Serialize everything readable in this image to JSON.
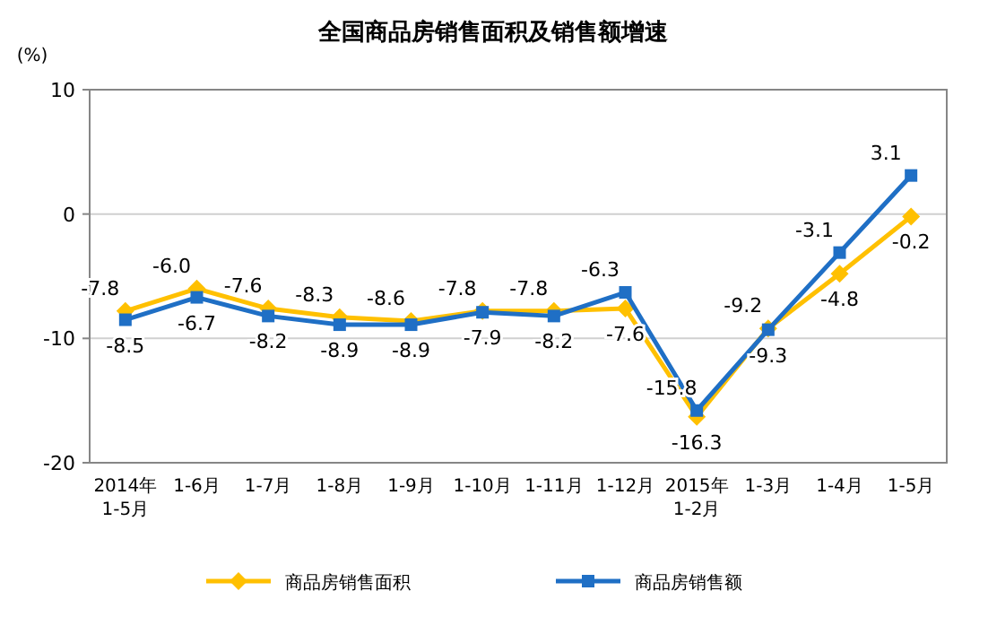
{
  "chart_data": {
    "type": "line",
    "title": "全国商品房销售面积及销售额增速",
    "ylabel": "(%)",
    "categories": [
      "2014年\n1-5月",
      "1-6月",
      "1-7月",
      "1-8月",
      "1-9月",
      "1-10月",
      "1-11月",
      "1-12月",
      "2015年\n1-2月",
      "1-3月",
      "1-4月",
      "1-5月"
    ],
    "series": [
      {
        "name": "商品房销售面积",
        "color": "#ffc000",
        "marker": "diamond",
        "values": [
          -7.8,
          -6.0,
          -7.6,
          -8.3,
          -8.6,
          -7.8,
          -7.8,
          -7.6,
          -16.3,
          -9.2,
          -4.8,
          -0.2
        ],
        "value_labels": [
          "-7.8",
          "-6.0",
          "-7.6",
          "-8.3",
          "-8.6",
          "-7.8",
          "-7.8",
          "-7.6",
          "-16.3",
          "-9.2",
          "-4.8",
          "-0.2"
        ]
      },
      {
        "name": "商品房销售额",
        "color": "#1f6fc5",
        "marker": "square",
        "values": [
          -8.5,
          -6.7,
          -8.2,
          -8.9,
          -8.9,
          -7.9,
          -8.2,
          -6.3,
          -15.8,
          -9.3,
          -3.1,
          3.1
        ],
        "value_labels": [
          "-8.5",
          "-6.7",
          "-8.2",
          "-8.9",
          "-8.9",
          "-7.9",
          "-8.2",
          "-6.3",
          "-15.8",
          "-9.3",
          "-3.1",
          "3.1"
        ]
      }
    ],
    "ylim": [
      -20,
      10
    ],
    "yticks": [
      -20,
      -10,
      0,
      10
    ],
    "grid": "y",
    "legend": "bottom"
  }
}
